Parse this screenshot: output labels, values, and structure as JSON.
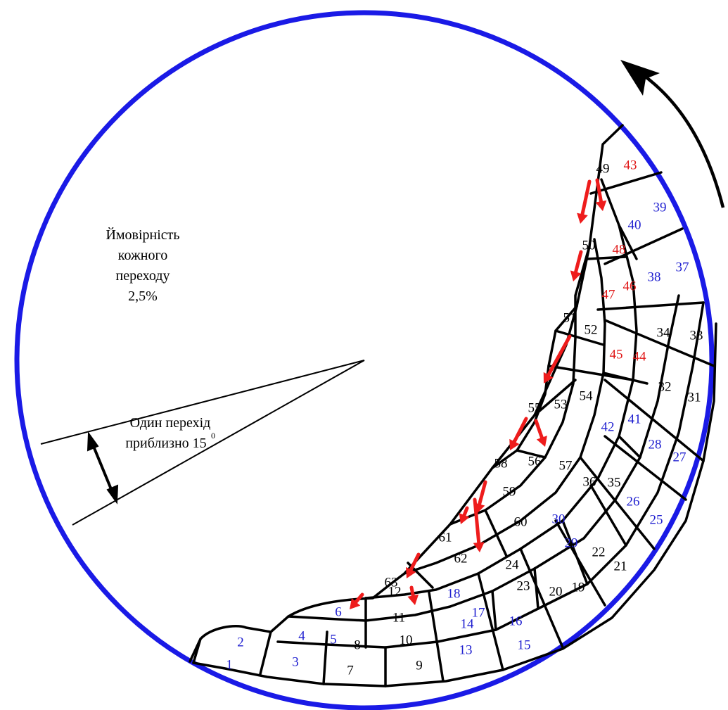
{
  "notes": {
    "probability_line1": "Ймовірність",
    "probability_line2": "кожного",
    "probability_line3": "переходу",
    "probability_line4": "2,5%",
    "transition_line1": "Один перехід",
    "transition_line2": "приблизно 15",
    "transition_degree": "0"
  },
  "colors": {
    "circle": "#1a1ae6",
    "black_label": "#000000",
    "blue_label": "#2020d0",
    "red_label": "#e01818",
    "arrow_red": "#ee1c1c"
  },
  "cells": [
    {
      "n": "1",
      "c": "blue"
    },
    {
      "n": "2",
      "c": "blue"
    },
    {
      "n": "3",
      "c": "blue"
    },
    {
      "n": "4",
      "c": "blue"
    },
    {
      "n": "5",
      "c": "blue"
    },
    {
      "n": "6",
      "c": "blue"
    },
    {
      "n": "7",
      "c": "black"
    },
    {
      "n": "8",
      "c": "black"
    },
    {
      "n": "9",
      "c": "black"
    },
    {
      "n": "10",
      "c": "black"
    },
    {
      "n": "11",
      "c": "black"
    },
    {
      "n": "12",
      "c": "black"
    },
    {
      "n": "13",
      "c": "blue"
    },
    {
      "n": "14",
      "c": "blue"
    },
    {
      "n": "15",
      "c": "blue"
    },
    {
      "n": "16",
      "c": "blue"
    },
    {
      "n": "17",
      "c": "blue"
    },
    {
      "n": "18",
      "c": "blue"
    },
    {
      "n": "19",
      "c": "black"
    },
    {
      "n": "20",
      "c": "black"
    },
    {
      "n": "21",
      "c": "black"
    },
    {
      "n": "22",
      "c": "black"
    },
    {
      "n": "23",
      "c": "black"
    },
    {
      "n": "24",
      "c": "black"
    },
    {
      "n": "25",
      "c": "blue"
    },
    {
      "n": "26",
      "c": "blue"
    },
    {
      "n": "27",
      "c": "blue"
    },
    {
      "n": "28",
      "c": "blue"
    },
    {
      "n": "29",
      "c": "blue"
    },
    {
      "n": "30",
      "c": "blue"
    },
    {
      "n": "31",
      "c": "black"
    },
    {
      "n": "32",
      "c": "black"
    },
    {
      "n": "33",
      "c": "black"
    },
    {
      "n": "34",
      "c": "black"
    },
    {
      "n": "35",
      "c": "black"
    },
    {
      "n": "36",
      "c": "black"
    },
    {
      "n": "37",
      "c": "blue"
    },
    {
      "n": "38",
      "c": "blue"
    },
    {
      "n": "39",
      "c": "blue"
    },
    {
      "n": "40",
      "c": "blue"
    },
    {
      "n": "41",
      "c": "blue"
    },
    {
      "n": "42",
      "c": "blue"
    },
    {
      "n": "43",
      "c": "red"
    },
    {
      "n": "44",
      "c": "red"
    },
    {
      "n": "45",
      "c": "red"
    },
    {
      "n": "46",
      "c": "red"
    },
    {
      "n": "47",
      "c": "red"
    },
    {
      "n": "48",
      "c": "red"
    },
    {
      "n": "49",
      "c": "black"
    },
    {
      "n": "50",
      "c": "black"
    },
    {
      "n": "51",
      "c": "black"
    },
    {
      "n": "52",
      "c": "black"
    },
    {
      "n": "53",
      "c": "black"
    },
    {
      "n": "54",
      "c": "black"
    },
    {
      "n": "55",
      "c": "black"
    },
    {
      "n": "56",
      "c": "black"
    },
    {
      "n": "57",
      "c": "black"
    },
    {
      "n": "58",
      "c": "black"
    },
    {
      "n": "59",
      "c": "black"
    },
    {
      "n": "60",
      "c": "black"
    },
    {
      "n": "61",
      "c": "black"
    },
    {
      "n": "62",
      "c": "black"
    },
    {
      "n": "63",
      "c": "black"
    }
  ]
}
